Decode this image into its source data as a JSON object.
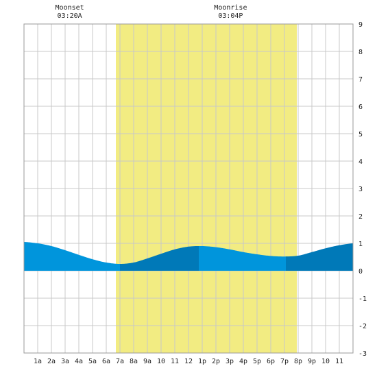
{
  "annotations": {
    "moonset": {
      "label": "Moonset",
      "time": "03:20A",
      "hour": 3.33
    },
    "moonrise": {
      "label": "Moonrise",
      "time": "03:04P",
      "hour": 15.07
    }
  },
  "chart_data": {
    "type": "area",
    "title": "",
    "xlabel": "",
    "ylabel": "",
    "x_tick_labels": [
      "1a",
      "2a",
      "3a",
      "4a",
      "5a",
      "6a",
      "7a",
      "8a",
      "9a",
      "10",
      "11",
      "12",
      "1p",
      "2p",
      "3p",
      "4p",
      "5p",
      "6p",
      "7p",
      "8p",
      "9p",
      "10",
      "11"
    ],
    "y_ticks": [
      -3,
      -2,
      -1,
      0,
      1,
      2,
      3,
      4,
      5,
      6,
      7,
      8,
      9
    ],
    "xlim": [
      0,
      24
    ],
    "ylim": [
      -3,
      9
    ],
    "grid": true,
    "daylight": {
      "start_hour": 6.7,
      "end_hour": 19.9,
      "color": "#f2ec82"
    },
    "tide_colors": {
      "light": "#0095dc",
      "dark": "#0079b8"
    },
    "low_tide": {
      "hour": 7,
      "height": 0.25
    },
    "high_tide": {
      "hour": 12.75,
      "height": 0.9
    },
    "low_tide_2": {
      "hour": 19.1,
      "height": 0.52
    },
    "series": [
      {
        "x": [
          0,
          1,
          2,
          3,
          4,
          5,
          6,
          7,
          8,
          9,
          10,
          11,
          12,
          13,
          14,
          15,
          16,
          17,
          18,
          19,
          20,
          21,
          22,
          23,
          24
        ],
        "values": [
          1.05,
          1.0,
          0.9,
          0.75,
          0.58,
          0.42,
          0.3,
          0.25,
          0.3,
          0.45,
          0.62,
          0.78,
          0.88,
          0.9,
          0.86,
          0.78,
          0.68,
          0.6,
          0.54,
          0.52,
          0.55,
          0.68,
          0.82,
          0.93,
          1.0
        ]
      }
    ]
  }
}
